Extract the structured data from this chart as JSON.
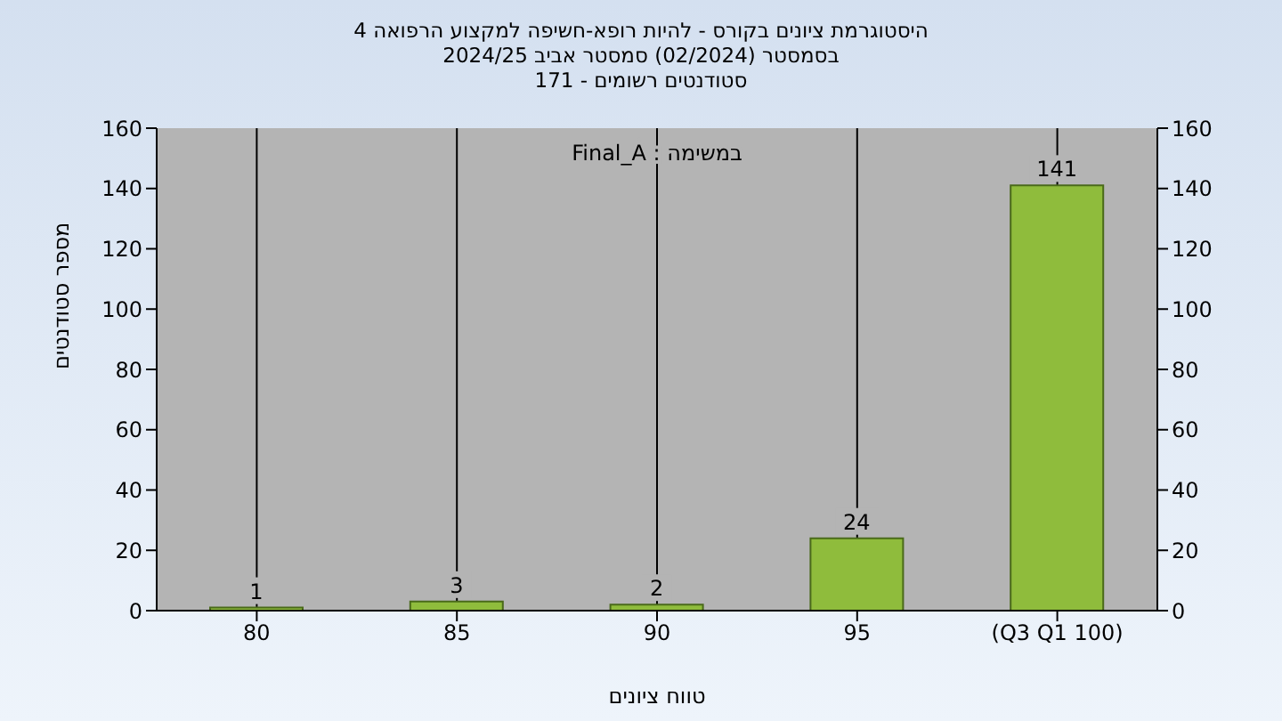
{
  "chart_data": {
    "type": "bar",
    "title": "היסטוגרמת ציונים בקורס - להיות רופא-חשיפה למקצוע הרפואה 4\nבסמסטר  (02/2024)  סמסטר אביב 2024/25\nסטודנטים רשומים - 171",
    "xlabel": "טווח ציונים",
    "ylabel": "מספר סטודנטים",
    "annotations": [
      "במשימה : Final_A"
    ],
    "categories": [
      "80",
      "85",
      "90",
      "95",
      "(Q3 Q1 100)"
    ],
    "values": [
      1,
      3,
      2,
      24,
      141
    ],
    "color": "#8fbc3c",
    "ylim": [
      0,
      160
    ],
    "yticks": [
      0,
      20,
      40,
      60,
      80,
      100,
      120,
      140,
      160
    ],
    "y2lim": [
      0,
      160
    ],
    "y2ticks": [
      0,
      20,
      40,
      60,
      80,
      100,
      120,
      140,
      160
    ],
    "grid": "x",
    "data_labels": true
  }
}
